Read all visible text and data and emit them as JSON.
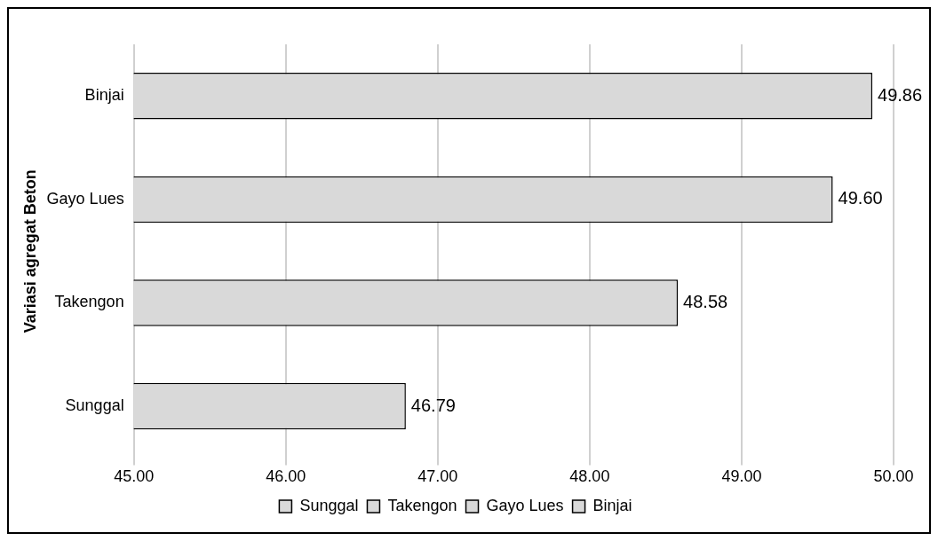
{
  "chart_data": {
    "type": "bar",
    "orientation": "horizontal",
    "stacked": true,
    "ylabel": "Variasi agregat Beton",
    "categories": [
      "Binjai",
      "Gayo Lues",
      "Takengon",
      "Sunggal"
    ],
    "series": [
      {
        "name": "Sunggal",
        "color": "#d9d9d9",
        "values": [
          null,
          null,
          null,
          46.79
        ],
        "value_labels": [
          null,
          null,
          null,
          "46.79"
        ]
      },
      {
        "name": "Takengon",
        "color": "#d9d9d9",
        "values": [
          null,
          null,
          48.58,
          null
        ],
        "value_labels": [
          null,
          null,
          "48.58",
          null
        ]
      },
      {
        "name": "Gayo Lues",
        "color": "#d9d9d9",
        "values": [
          null,
          49.6,
          null,
          null
        ],
        "value_labels": [
          null,
          "49.60",
          null,
          null
        ]
      },
      {
        "name": "Binjai",
        "color": "#d9d9d9",
        "values": [
          49.86,
          null,
          null,
          null
        ],
        "value_labels": [
          "49.86",
          null,
          null,
          null
        ]
      }
    ],
    "xlim": [
      45,
      50
    ],
    "xticks": [
      {
        "value": 45,
        "label": "45.00"
      },
      {
        "value": 46,
        "label": "46.00"
      },
      {
        "value": 47,
        "label": "47.00"
      },
      {
        "value": 48,
        "label": "48.00"
      },
      {
        "value": 49,
        "label": "49.00"
      },
      {
        "value": 50,
        "label": "50.00"
      }
    ],
    "grid": "x",
    "legend": "bottom"
  }
}
